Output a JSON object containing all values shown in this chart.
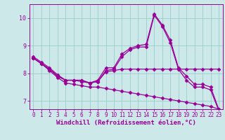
{
  "xlabel": "Windchill (Refroidissement éolien,°C)",
  "background_color": "#cce8e8",
  "grid_color": "#99cccc",
  "line_color": "#990099",
  "xlim": [
    -0.5,
    23.5
  ],
  "ylim": [
    6.7,
    10.5
  ],
  "yticks": [
    7,
    8,
    9,
    10
  ],
  "xticks": [
    0,
    1,
    2,
    3,
    4,
    5,
    6,
    7,
    8,
    9,
    10,
    11,
    12,
    13,
    14,
    15,
    16,
    17,
    18,
    19,
    20,
    21,
    22,
    23
  ],
  "line1": [
    8.6,
    8.4,
    8.2,
    7.95,
    7.75,
    7.75,
    7.75,
    7.65,
    7.75,
    8.2,
    8.2,
    8.7,
    8.9,
    9.0,
    9.05,
    10.15,
    9.75,
    9.2,
    8.2,
    7.9,
    7.6,
    7.6,
    7.5,
    6.7
  ],
  "line2": [
    8.55,
    8.35,
    8.15,
    7.9,
    7.75,
    7.75,
    7.75,
    7.65,
    7.7,
    8.1,
    8.15,
    8.6,
    8.85,
    8.95,
    8.95,
    10.1,
    9.7,
    9.1,
    8.15,
    7.75,
    7.5,
    7.5,
    7.4,
    6.65
  ],
  "line3": [
    8.55,
    8.35,
    8.15,
    7.9,
    7.75,
    7.75,
    7.7,
    7.65,
    7.7,
    8.05,
    8.1,
    8.15,
    8.15,
    8.15,
    8.15,
    8.15,
    8.15,
    8.15,
    8.15,
    8.15,
    8.15,
    8.15,
    8.15,
    8.15
  ],
  "line4": [
    8.55,
    8.35,
    8.1,
    7.85,
    7.65,
    7.6,
    7.55,
    7.5,
    7.5,
    7.45,
    7.4,
    7.35,
    7.3,
    7.25,
    7.2,
    7.15,
    7.1,
    7.05,
    7.0,
    6.95,
    6.9,
    6.85,
    6.8,
    6.7
  ],
  "marker": "D",
  "markersize": 2.5,
  "linewidth": 0.9,
  "tick_fontsize": 5.5,
  "xlabel_fontsize": 6.5
}
